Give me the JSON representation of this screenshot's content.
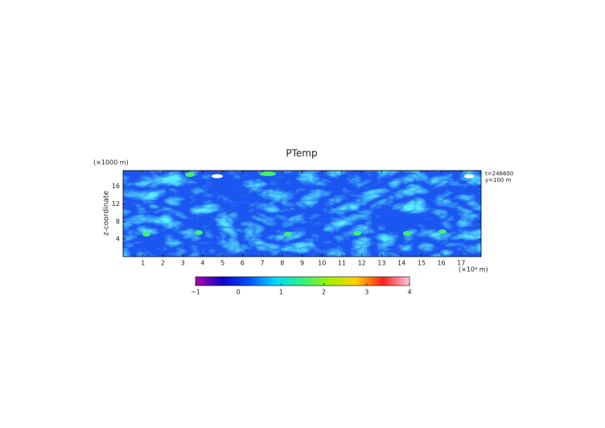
{
  "chart_data": {
    "type": "heatmap",
    "title": "PTemp",
    "y_label": "z-coordinate",
    "y_unit": "(×1000 m)",
    "x_unit": "(×10⁴ m)",
    "annotations": [
      "t=246600",
      "y=100 m"
    ],
    "xlim": [
      0,
      18
    ],
    "xticks": [
      1,
      2,
      3,
      4,
      5,
      6,
      7,
      8,
      9,
      10,
      11,
      12,
      13,
      14,
      15,
      16,
      17
    ],
    "ylim": [
      0,
      19.6
    ],
    "yticks": [
      4,
      8,
      12,
      16
    ],
    "colorbar": {
      "lim": [
        -1,
        4
      ],
      "ticks": [
        {
          "value": -1,
          "label": "−1"
        },
        0,
        1,
        2,
        3,
        4
      ],
      "colors": [
        "#b000b0",
        "#1000c8",
        "#0050ff",
        "#00d8ff",
        "#30f080",
        "#a0f000",
        "#ffd000",
        "#ff2020",
        "#ffc8dc"
      ]
    }
  }
}
